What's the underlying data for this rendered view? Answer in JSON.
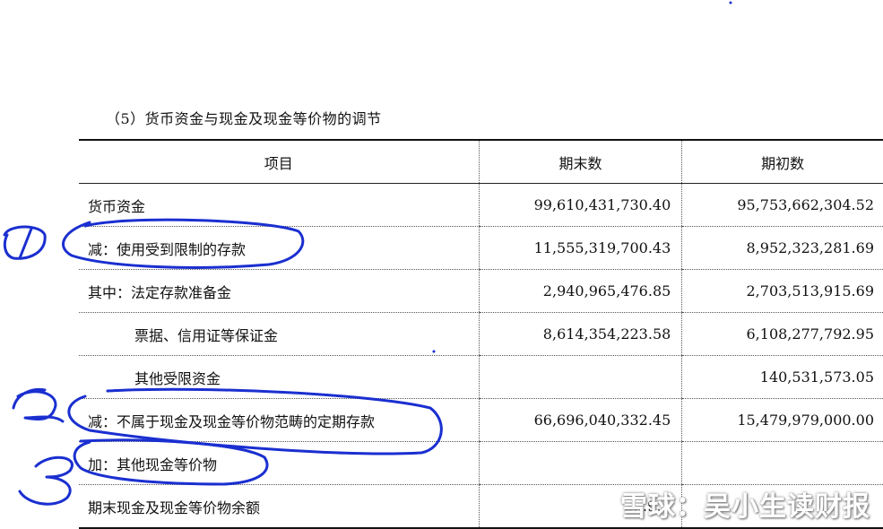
{
  "caption": "（5）货币资金与现金及现金等价物的调节",
  "table": {
    "headers": [
      "项目",
      "期末数",
      "期初数"
    ],
    "rows": [
      {
        "item": "货币资金",
        "end": "99,610,431,730.40",
        "begin": "95,753,662,304.52"
      },
      {
        "item": "减：使用受到限制的存款",
        "end": "11,555,319,700.43",
        "begin": "8,952,323,281.69"
      },
      {
        "item": "其中：法定存款准备金",
        "end": "2,940,965,476.85",
        "begin": "2,703,513,915.69"
      },
      {
        "item": "票据、信用证等保证金",
        "end": "8,614,354,223.58",
        "begin": "6,108,277,792.95"
      },
      {
        "item": "其他受限资金",
        "end": "",
        "begin": "140,531,573.05"
      },
      {
        "item": "减：不属于现金及现金等价物范畴的定期存款",
        "end": "66,696,040,332.45",
        "begin": "15,479,979,000.00"
      },
      {
        "item": "加：其他现金等价物",
        "end": "",
        "begin": ""
      },
      {
        "item": "期末现金及现金等价物余额",
        "end": "2…9…",
        "begin": ""
      }
    ]
  },
  "annotations": {
    "ink_color": "#1a2fd0",
    "numbers": [
      "1",
      "2",
      "3"
    ]
  },
  "watermark": "雪球：吴小生读财报"
}
